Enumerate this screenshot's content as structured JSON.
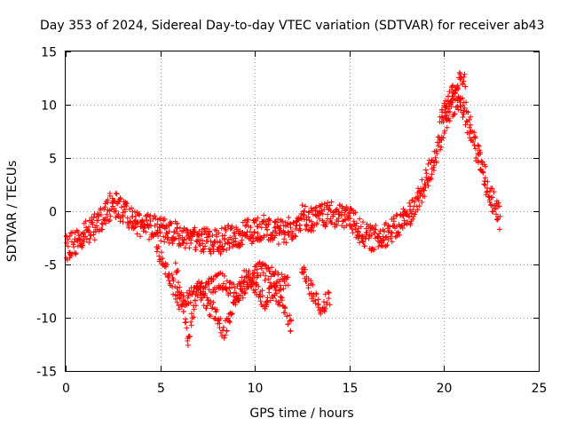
{
  "chart_data": {
    "type": "scatter",
    "title": "Day 353 of 2024, Sidereal Day-to-day VTEC variation (SDTVAR) for receiver ab43",
    "xlabel": "GPS time / hours",
    "ylabel": "SDTVAR / TECUs",
    "xlim": [
      0,
      25
    ],
    "ylim": [
      -15,
      15
    ],
    "xticks": [
      "0",
      "5",
      "10",
      "15",
      "20",
      "25"
    ],
    "yticks": [
      "-15",
      "-10",
      "-5",
      "0",
      "5",
      "10",
      "15"
    ],
    "xtick_values": [
      0,
      5,
      10,
      15,
      20,
      25
    ],
    "ytick_values": [
      -15,
      -10,
      -5,
      0,
      5,
      10,
      15
    ],
    "grid": true,
    "marker": "+",
    "color": "#ff0000",
    "series": [
      {
        "name": "main-trend",
        "x": [
          0,
          0.5,
          1,
          1.5,
          2,
          2.5,
          3,
          3.5,
          4,
          4.5,
          5,
          5.5,
          6,
          6.5,
          7,
          7.5,
          8,
          8.5,
          9,
          9.5,
          10,
          10.5,
          11,
          11.5,
          12,
          12.5,
          13,
          13.5,
          14,
          14.5,
          15,
          15.5,
          16,
          16.5,
          17,
          17.5,
          18,
          18.5,
          19,
          19.5,
          20,
          20.5,
          21,
          21.5,
          22,
          22.5,
          23
        ],
        "y": [
          -3.5,
          -3,
          -2,
          -1.5,
          -0.5,
          0.8,
          0,
          -0.8,
          -1.5,
          -1.5,
          -1.8,
          -2,
          -2.2,
          -2.5,
          -2.5,
          -2.8,
          -3,
          -2.5,
          -2.5,
          -2,
          -1.8,
          -1.5,
          -1.8,
          -2,
          -1.5,
          -0.5,
          -0.8,
          -0.5,
          -0.3,
          -0.5,
          -0.5,
          -1.8,
          -2.5,
          -2.5,
          -2,
          -1.5,
          -0.5,
          0.5,
          2.5,
          5,
          8,
          10,
          10,
          7,
          4,
          1.5,
          -1
        ]
      },
      {
        "name": "upper-arc",
        "x": [
          19.8,
          20.2,
          20.6,
          21,
          21.2
        ],
        "y": [
          9,
          10.5,
          12,
          12.5,
          12
        ]
      },
      {
        "name": "lower-branch-a",
        "x": [
          5.8,
          6,
          6.2,
          6.5,
          7,
          7.5,
          8,
          8.3,
          8.6,
          9,
          9.5,
          10,
          10.5,
          11,
          11.5,
          12
        ],
        "y": [
          -5,
          -7,
          -9,
          -12,
          -7,
          -9,
          -9.5,
          -11.5,
          -10,
          -8,
          -6,
          -7,
          -8.5,
          -7.5,
          -9,
          -11
        ]
      },
      {
        "name": "lower-branch-b",
        "x": [
          4.8,
          5.2,
          5.6,
          6,
          8.2,
          8.8,
          9.2,
          9.6,
          10.2,
          10.8,
          11.2,
          11.8
        ],
        "y": [
          -3.5,
          -5,
          -6.5,
          -8.5,
          -6.5,
          -7.5,
          -8,
          -6.5,
          -5.5,
          -6,
          -6.5,
          -7
        ]
      },
      {
        "name": "after-noon-cluster",
        "x": [
          12.5,
          13,
          13.5,
          14
        ],
        "y": [
          -5.5,
          -7.5,
          -9,
          -8
        ]
      }
    ]
  }
}
